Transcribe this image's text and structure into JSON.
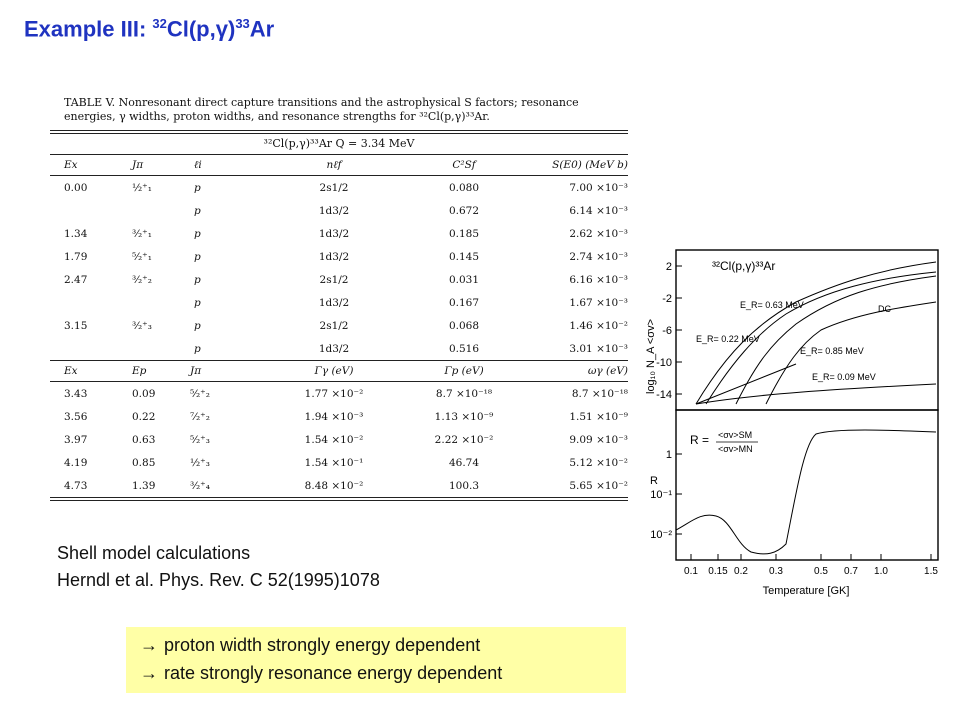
{
  "title": {
    "prefix": "Example III: ",
    "sup1": "32",
    "mid": "Cl(p,",
    "gamma": "γ",
    "close": ")",
    "sup2": "33",
    "suffix": "Ar"
  },
  "table": {
    "caption": "TABLE V. Nonresonant direct capture transitions and the astrophysical S factors; resonance energies, γ widths, proton widths, and resonance strengths for ³²Cl(p,γ)³³Ar.",
    "reaction_header": "³²Cl(p,γ)³³Ar        Q = 3.34 MeV",
    "headers1": [
      "Ex",
      "Jπ",
      "ℓi",
      "nℓf",
      "C²Sf",
      "S(E0) (MeV b)"
    ],
    "rows1": [
      [
        "0.00",
        "½⁺₁",
        "p",
        "2s1/2",
        "0.080",
        "7.00 ×10⁻³"
      ],
      [
        "",
        "",
        "p",
        "1d3/2",
        "0.672",
        "6.14 ×10⁻³"
      ],
      [
        "1.34",
        "³⁄₂⁺₁",
        "p",
        "1d3/2",
        "0.185",
        "2.62 ×10⁻³"
      ],
      [
        "1.79",
        "⁵⁄₂⁺₁",
        "p",
        "1d3/2",
        "0.145",
        "2.74 ×10⁻³"
      ],
      [
        "2.47",
        "³⁄₂⁺₂",
        "p",
        "2s1/2",
        "0.031",
        "6.16 ×10⁻³"
      ],
      [
        "",
        "",
        "p",
        "1d3/2",
        "0.167",
        "1.67 ×10⁻³"
      ],
      [
        "3.15",
        "³⁄₂⁺₃",
        "p",
        "2s1/2",
        "0.068",
        "1.46 ×10⁻²"
      ],
      [
        "",
        "",
        "p",
        "1d3/2",
        "0.516",
        "3.01 ×10⁻³"
      ]
    ],
    "headers2": [
      "Ex",
      "Ep",
      "Jπ",
      "Γγ (eV)",
      "Γp (eV)",
      "ωγ (eV)"
    ],
    "rows2": [
      [
        "3.43",
        "0.09",
        "⁵⁄₂⁺₂",
        "1.77 ×10⁻²",
        "8.7 ×10⁻¹⁸",
        "8.7 ×10⁻¹⁸"
      ],
      [
        "3.56",
        "0.22",
        "⁷⁄₂⁺₂",
        "1.94 ×10⁻³",
        "1.13 ×10⁻⁹",
        "1.51 ×10⁻⁹"
      ],
      [
        "3.97",
        "0.63",
        "⁵⁄₂⁺₃",
        "1.54 ×10⁻²",
        "2.22 ×10⁻²",
        "9.09 ×10⁻³"
      ],
      [
        "4.19",
        "0.85",
        "½⁺₃",
        "1.54 ×10⁻¹",
        "46.74",
        "5.12 ×10⁻²"
      ],
      [
        "4.73",
        "1.39",
        "³⁄₂⁺₄",
        "8.48 ×10⁻²",
        "100.3",
        "5.65 ×10⁻²"
      ]
    ]
  },
  "notes": {
    "line1": "Shell model calculations",
    "line2": "Herndl et al. Phys. Rev. C 52(1995)1078"
  },
  "bullets": {
    "arrow": "→",
    "items": [
      "proton width strongly energy dependent",
      "rate strongly resonance energy dependent"
    ]
  },
  "figure": {
    "reaction_label": "³²Cl(p,γ)³³Ar",
    "upper_ylabel": "log₁₀ N_A <σv>",
    "upper_yticks": [
      "2",
      "-2",
      "-6",
      "-10",
      "-14"
    ],
    "curve_labels": [
      "E_R= 0.63 MeV",
      "DC",
      "E_R= 0.22 MeV",
      "E_R= 0.85 MeV",
      "E_R= 0.09 MeV"
    ],
    "lower_ylabel": "R",
    "ratio_label": "R =",
    "ratio_num": "<σv>SM",
    "ratio_den": "<σv>MN",
    "lower_yticks": [
      "1",
      "10⁻¹",
      "10⁻²"
    ],
    "xticks": [
      "0.1",
      "0.15",
      "0.2",
      "0.3",
      "0.5",
      "0.7",
      "1.0",
      "1.5"
    ],
    "xlabel": "Temperature [GK]"
  },
  "colors": {
    "title": "#1f33c0",
    "highlight": "#ffffa6"
  }
}
